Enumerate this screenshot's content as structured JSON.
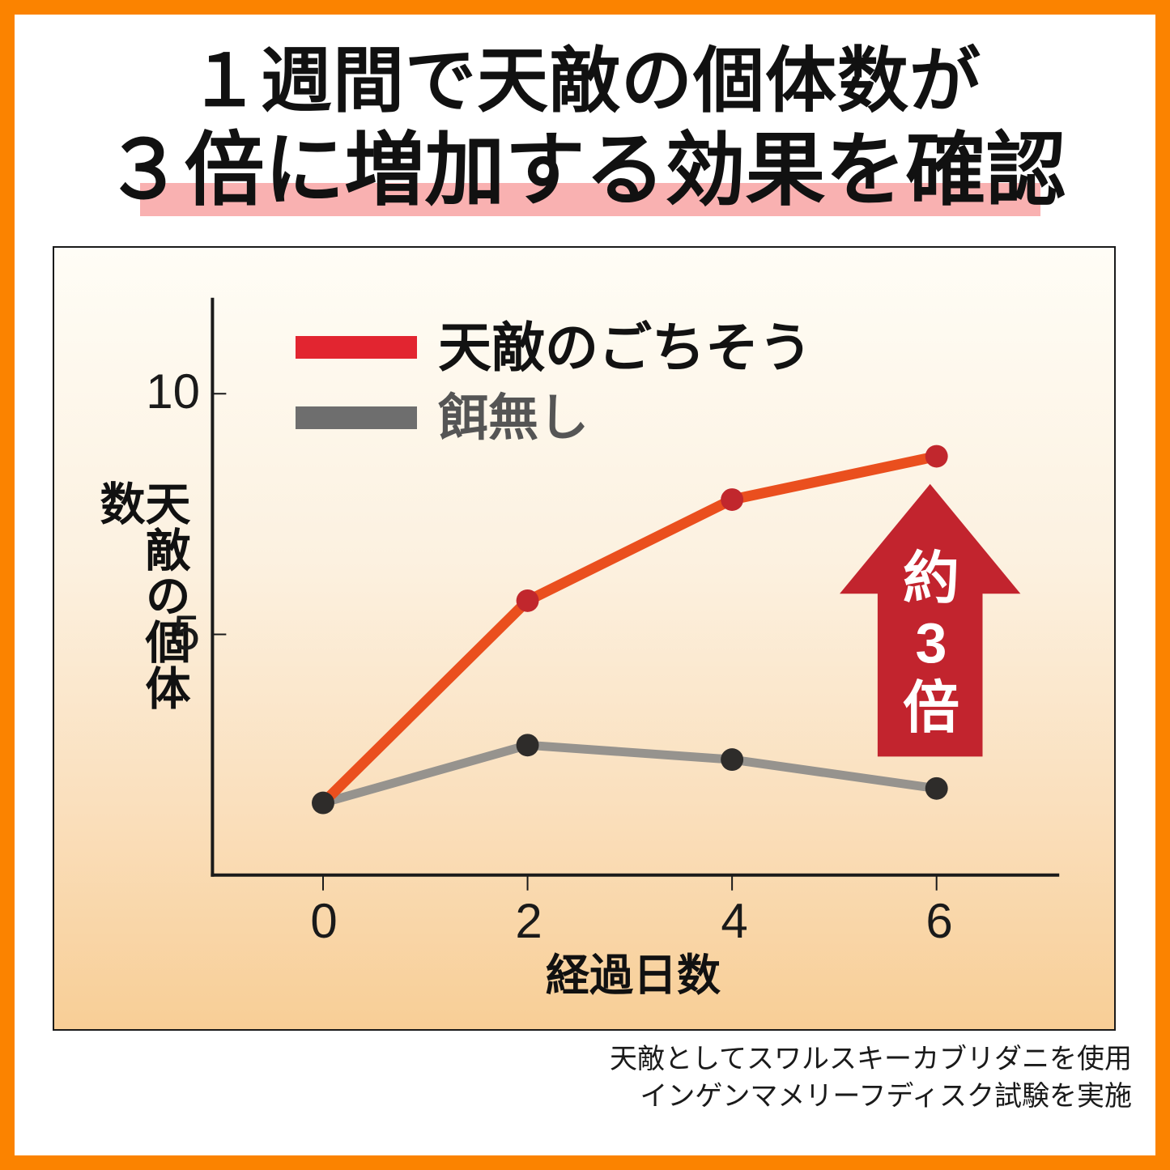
{
  "title": {
    "line1": "１週間で天敵の個体数が",
    "line2": "３倍に増加する効果を確認"
  },
  "chart": {
    "legend": [
      {
        "label": "天敵のごちそう",
        "swatch_color": "#E22530"
      },
      {
        "label": "餌無し",
        "swatch_color": "#6E6E6E"
      }
    ],
    "annotation_lines": [
      "約",
      "3",
      "倍"
    ]
  },
  "chart_data": {
    "type": "line",
    "x": [
      0,
      2,
      4,
      6
    ],
    "series": [
      {
        "name": "天敵のごちそう",
        "values": [
          1.5,
          5.7,
          7.8,
          8.7
        ],
        "line_color": "#EA4F1E",
        "marker_color": "#C1272D",
        "markers": [
          false,
          true,
          true,
          true
        ]
      },
      {
        "name": "餌無し",
        "values": [
          1.5,
          2.7,
          2.4,
          1.8
        ],
        "line_color": "#96938E",
        "marker_color": "#2E2C2A",
        "markers": [
          true,
          true,
          true,
          true
        ]
      }
    ],
    "title": "",
    "xlabel": "経過日数",
    "ylabel": "天敵の個体数",
    "ylim": [
      0,
      12
    ],
    "yticks": [
      5,
      10
    ],
    "grid": false,
    "legend_position": "top-left",
    "annotation": "約3倍"
  },
  "footer": {
    "line1": "天敵としてスワルスキーカブリダニを使用",
    "line2": "インゲンマメリーフディスク試験を実施"
  },
  "colors": {
    "border_orange": "#FB8300",
    "highlight_pink": "#F9B1B1",
    "panel_gradient_top": "#FFFDF6",
    "panel_gradient_bottom": "#F8CE96",
    "axis": "#1A1A1A",
    "arrow_red": "#C2242E",
    "legend_red": "#E22530",
    "legend_gray": "#6E6E6E",
    "annotation_text": "#FFFFFF"
  }
}
